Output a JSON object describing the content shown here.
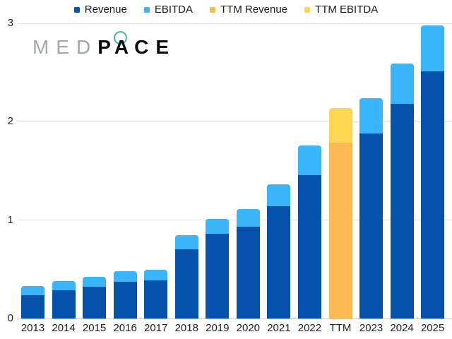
{
  "logo": {
    "med": "MED",
    "p": "P",
    "a": "A",
    "ce": "CE",
    "ring_color": "#3ebe89",
    "med_color": "#a4a6a9",
    "pace_color": "#0d0d0d"
  },
  "legend": {
    "items": [
      {
        "label": "Revenue",
        "color": "#0551ab"
      },
      {
        "label": "EBITDA",
        "color": "#3ab5fa"
      },
      {
        "label": "TTM Revenue",
        "color": "#fcba54"
      },
      {
        "label": "TTM EBITDA",
        "color": "#ffd853"
      }
    ]
  },
  "chart_data": {
    "type": "bar",
    "stacked": true,
    "title": "",
    "xlabel": "",
    "ylabel": "",
    "categories": [
      "2013",
      "2014",
      "2015",
      "2016",
      "2017",
      "2018",
      "2019",
      "2020",
      "2021",
      "2022",
      "TTM",
      "2023",
      "2024",
      "2025"
    ],
    "series": [
      {
        "name": "Revenue",
        "values": [
          0.24,
          0.29,
          0.32,
          0.37,
          0.39,
          0.7,
          0.86,
          0.93,
          1.14,
          1.46,
          1.79,
          1.88,
          2.18,
          2.51
        ]
      },
      {
        "name": "EBITDA",
        "values": [
          0.09,
          0.09,
          0.1,
          0.11,
          0.11,
          0.14,
          0.15,
          0.18,
          0.22,
          0.3,
          0.35,
          0.36,
          0.41,
          0.47
        ]
      }
    ],
    "ttm_category": "TTM",
    "ttm_note": "TTM column uses TTM Revenue / TTM EBITDA colors",
    "colors": {
      "revenue": "#0551ab",
      "ebitda": "#3ab5fa",
      "ttm_revenue": "#fcba54",
      "ttm_ebitda": "#ffd853"
    },
    "ylim": [
      0,
      3
    ],
    "yticks": [
      0,
      1,
      2,
      3
    ],
    "grid": "horizontal",
    "gridline_color": "#e2e2e2",
    "legend_position": "top-center"
  }
}
